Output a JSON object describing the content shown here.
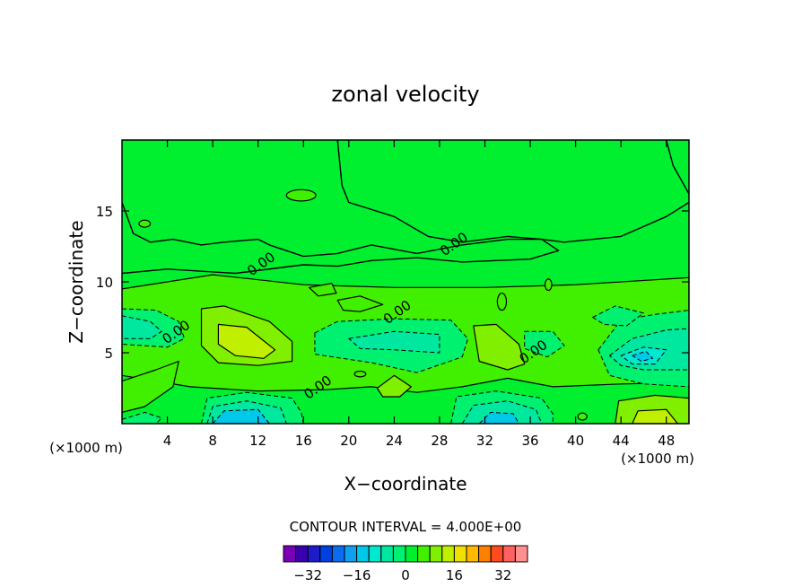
{
  "chart_data": {
    "type": "heatmap",
    "title": "zonal velocity",
    "xlabel": "X−coordinate",
    "ylabel": "Z−coordinate",
    "x_unit_left": "(×1000 m)",
    "x_unit_right": "(×1000 m)",
    "xlim": [
      0,
      50
    ],
    "ylim": [
      0,
      20
    ],
    "x_ticks": [
      4,
      8,
      12,
      16,
      20,
      24,
      28,
      32,
      36,
      40,
      44,
      48
    ],
    "x_tick_labels": [
      "4",
      "8",
      "12",
      "16",
      "20",
      "24",
      "28",
      "32",
      "36",
      "40",
      "44",
      "48"
    ],
    "y_ticks": [
      5,
      10,
      15
    ],
    "y_tick_labels": [
      "5",
      "10",
      "15"
    ],
    "contour_interval_text": "CONTOUR INTERVAL = 4.000E+00",
    "contour_labels": [
      {
        "text": "0.00",
        "x": 29.5,
        "y": 12.4
      },
      {
        "text": "0.00",
        "x": 12.5,
        "y": 11.0
      },
      {
        "text": "0.00",
        "x": 24.5,
        "y": 7.6
      },
      {
        "text": "0.00",
        "x": 5.0,
        "y": 6.2
      },
      {
        "text": "0.00",
        "x": 36.5,
        "y": 4.8
      },
      {
        "text": "0.00",
        "x": 17.5,
        "y": 2.3
      }
    ],
    "colorbar": {
      "levels": [
        -36,
        -32,
        -28,
        -24,
        -20,
        -16,
        -12,
        -8,
        -4,
        0,
        4,
        8,
        12,
        16,
        20,
        24,
        28,
        32,
        36
      ],
      "colors": [
        "#7a00b8",
        "#3a00b0",
        "#1c1cc8",
        "#0040e0",
        "#0a6cf2",
        "#10a0f0",
        "#00c8e8",
        "#00e8d0",
        "#00e8a0",
        "#00f070",
        "#00f030",
        "#40f000",
        "#80f000",
        "#c0f000",
        "#f0e000",
        "#ffb800",
        "#ff8000",
        "#ff4a20",
        "#ff6060",
        "#ff9090"
      ],
      "tick_values": [
        -32,
        -16,
        0,
        16,
        32
      ],
      "tick_labels": [
        "−32",
        "−16",
        "0",
        "16",
        "32"
      ]
    },
    "legend": "none",
    "grid": false
  }
}
